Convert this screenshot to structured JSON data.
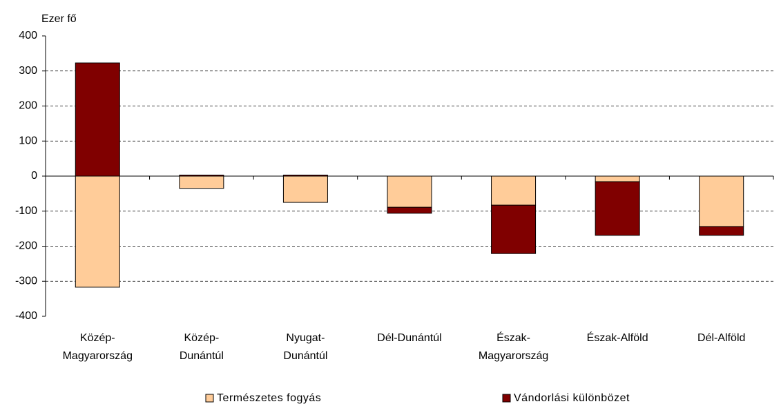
{
  "chart_data": {
    "type": "stacked_bar",
    "y_label": "Ezer fő",
    "categories": [
      "Közép-\nMagyarország",
      "Közép-\nDunántúl",
      "Nyugat-\nDunántúl",
      "Dél-Dunántúl",
      "Észak-\nMagyarország",
      "Észak-Alföld",
      "Dél-Alföld"
    ],
    "series": [
      {
        "name": "Természetes fogyás",
        "color": "#ffcc99",
        "values": [
          -317,
          -35,
          -75,
          -89,
          -83,
          -16,
          -144
        ]
      },
      {
        "name": "Vándorlási különbözet",
        "color": "#800000",
        "values": [
          323,
          3,
          3,
          -17,
          -138,
          -153,
          -25
        ]
      }
    ],
    "ylim": [
      -400,
      400
    ],
    "yticks": [
      -400,
      -300,
      -200,
      -100,
      0,
      100,
      200,
      300,
      400
    ],
    "grid": true
  }
}
